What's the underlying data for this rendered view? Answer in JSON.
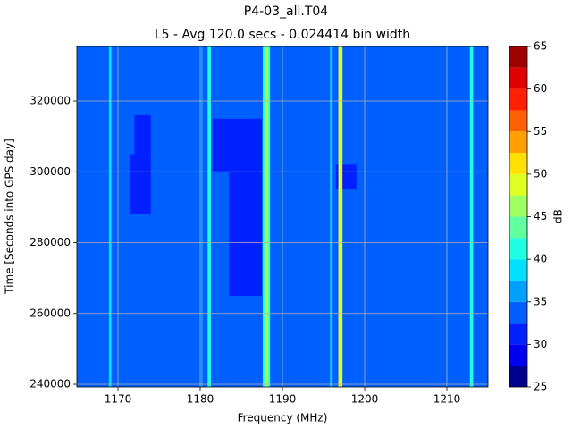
{
  "chart_data": {
    "type": "heatmap",
    "title": "P4-03_all.T04",
    "subtitle": "L5 - Avg 120.0 secs - 0.024414 bin width",
    "x_label": "Frequency (MHz)",
    "y_label": "Time [Seconds into GPS day]",
    "xlim": [
      1165,
      1215
    ],
    "xticks": [
      1170,
      1180,
      1190,
      1200,
      1210
    ],
    "ylim": [
      239250,
      335400
    ],
    "yticks": [
      240000,
      260000,
      280000,
      300000,
      320000
    ],
    "grid": true,
    "background_value": 34,
    "cells": [
      {
        "x": [
          1171.5,
          1174
        ],
        "y": [
          288000,
          305000
        ],
        "value": 31
      },
      {
        "x": [
          1172,
          1174
        ],
        "y": [
          305000,
          316000
        ],
        "value": 31
      },
      {
        "x": [
          1181.5,
          1187.5
        ],
        "y": [
          300000,
          315000
        ],
        "value": 31
      },
      {
        "x": [
          1183.5,
          1187.5
        ],
        "y": [
          265000,
          300000
        ],
        "value": 31
      },
      {
        "x": [
          1196.5,
          1199
        ],
        "y": [
          295000,
          302000
        ],
        "value": 31
      },
      {
        "x": [
          1168.9,
          1169.2
        ],
        "y": [
          239250,
          335400
        ],
        "value": 38
      },
      {
        "x": [
          1180.1,
          1180.3
        ],
        "y": [
          239250,
          335400
        ],
        "value": 36
      },
      {
        "x": [
          1180.9,
          1181.3
        ],
        "y": [
          239250,
          335400
        ],
        "value": 40
      },
      {
        "x": [
          1187.6,
          1188.5
        ],
        "y": [
          239250,
          335400
        ],
        "value": 40
      },
      {
        "x": [
          1187.8,
          1188.3
        ],
        "y": [
          239250,
          335400
        ],
        "value": 47
      },
      {
        "x": [
          1195.8,
          1196.1
        ],
        "y": [
          239250,
          335400
        ],
        "value": 39
      },
      {
        "x": [
          1196.8,
          1197.3
        ],
        "y": [
          239250,
          335400
        ],
        "value": 49
      },
      {
        "x": [
          1212.8,
          1213.2
        ],
        "y": [
          239250,
          335400
        ],
        "value": 41
      }
    ],
    "colorbar": {
      "label": "dB",
      "levels": [
        25,
        27.5,
        30,
        32.5,
        35,
        37.5,
        40,
        42.5,
        45,
        47.5,
        50,
        52.5,
        55,
        57.5,
        60,
        62.5,
        65
      ],
      "colors": [
        "#00008f",
        "#0000ef",
        "#0020ff",
        "#0060ff",
        "#00a0ff",
        "#00e0ff",
        "#20ffdf",
        "#60ff9f",
        "#9fff60",
        "#dfff20",
        "#ffe000",
        "#ffa000",
        "#ff6000",
        "#ff2000",
        "#df0000",
        "#9f0000"
      ],
      "ticks": [
        25,
        30,
        35,
        40,
        45,
        50,
        55,
        60,
        65
      ]
    }
  }
}
